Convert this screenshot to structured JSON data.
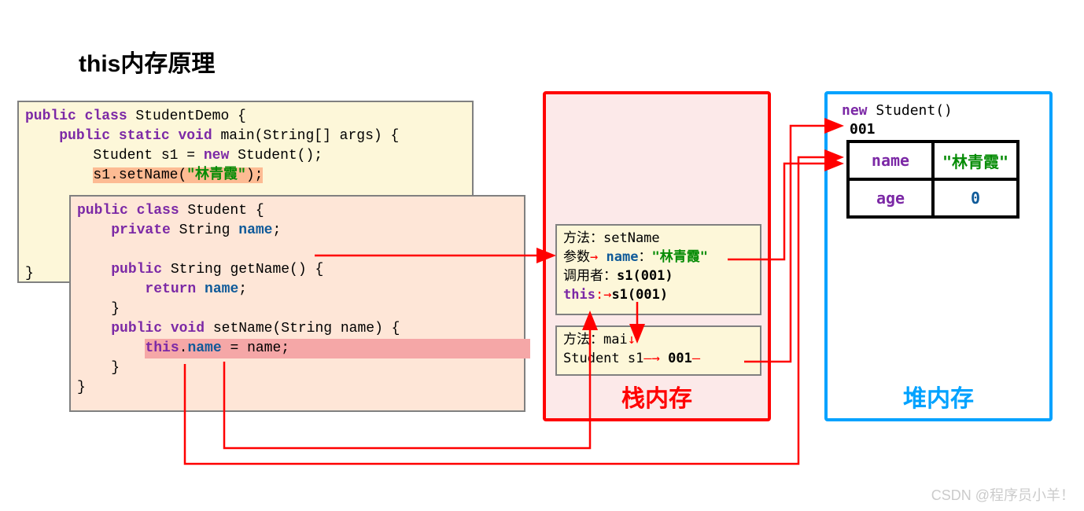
{
  "title": "this内存原理",
  "code1": {
    "bg": "#fdf7d9",
    "lines": [
      {
        "segments": [
          [
            "kw-purple",
            "public class"
          ],
          [
            "plain",
            " StudentDemo {"
          ]
        ]
      },
      {
        "indent": "    ",
        "segments": [
          [
            "kw-purple",
            "public static void"
          ],
          [
            "plain",
            " main(String[] args) {"
          ]
        ]
      },
      {
        "indent": "        ",
        "segments": [
          [
            "plain",
            "Student s1 = "
          ],
          [
            "kw-purple",
            "new"
          ],
          [
            "plain",
            " Student();"
          ]
        ]
      },
      {
        "indent": "        ",
        "highlight": "hl-orange",
        "segments": [
          [
            "plain",
            "s1.setName("
          ],
          [
            "str-green",
            "\"林青霞\""
          ],
          [
            "plain",
            ");"
          ]
        ]
      },
      {
        "indent": "",
        "segments": [
          [
            "plain",
            ""
          ]
        ]
      },
      {
        "indent": "",
        "segments": [
          [
            "plain",
            ""
          ]
        ]
      },
      {
        "indent": "",
        "segments": [
          [
            "plain",
            ""
          ]
        ]
      },
      {
        "indent": "",
        "segments": [
          [
            "plain",
            ""
          ]
        ]
      },
      {
        "indent": "",
        "segments": [
          [
            "plain",
            "}"
          ]
        ]
      }
    ]
  },
  "code2": {
    "bg": "#fee6d7",
    "lines": [
      {
        "segments": [
          [
            "kw-purple",
            "public class"
          ],
          [
            "plain",
            " Student {"
          ]
        ]
      },
      {
        "indent": "    ",
        "segments": [
          [
            "kw-purple",
            "private"
          ],
          [
            "plain",
            " String "
          ],
          [
            "kw-blue",
            "name"
          ],
          [
            "plain",
            ";"
          ]
        ]
      },
      {
        "indent": "",
        "segments": [
          [
            "plain",
            ""
          ]
        ]
      },
      {
        "indent": "    ",
        "segments": [
          [
            "kw-purple",
            "public"
          ],
          [
            "plain",
            " String getName() {"
          ]
        ]
      },
      {
        "indent": "        ",
        "segments": [
          [
            "kw-purple",
            "return"
          ],
          [
            "plain",
            " "
          ],
          [
            "kw-blue",
            "name"
          ],
          [
            "plain",
            ";"
          ]
        ]
      },
      {
        "indent": "    ",
        "segments": [
          [
            "plain",
            "}"
          ]
        ]
      },
      {
        "indent": "    ",
        "segments": [
          [
            "kw-purple",
            "public void"
          ],
          [
            "plain",
            " setName(String name) {"
          ]
        ]
      },
      {
        "indent": "        ",
        "highlight": "hl-pink",
        "segments": [
          [
            "kw-purple",
            "this"
          ],
          [
            "plain",
            "."
          ],
          [
            "kw-blue",
            "name"
          ],
          [
            "plain",
            " = name;"
          ]
        ]
      },
      {
        "indent": "    ",
        "segments": [
          [
            "plain",
            "}"
          ]
        ]
      },
      {
        "indent": "",
        "segments": [
          [
            "plain",
            "}"
          ]
        ]
      }
    ]
  },
  "stack": {
    "label": "栈内存",
    "border_color": "#ff0000",
    "bg": "#fce9e9",
    "frame1": {
      "lines": [
        {
          "raw": "<span class='plain'>方法：setName</span>"
        },
        {
          "raw": "<span class='plain'>参数<span style='color:#ff0000'>→</span> </span><span class='kw-blue'>name</span><span class='plain'>：</span><span class='str-green'>\"林青霞\"</span>"
        },
        {
          "raw": "<span class='plain'>调用者：</span><span class='kw-bold'>s1(001)</span>"
        },
        {
          "raw": "<span class='kw-purple'>this</span><span style='color:#ff0000'>:→</span><span class='kw-bold'>s1(001)</span>"
        }
      ]
    },
    "frame2": {
      "lines": [
        {
          "raw": "<span class='plain'>方法：mai</span><span style='color:#ff0000'>↓</span>"
        },
        {
          "raw": "<span class='plain'> Student s1</span><span style='color:#ff0000'>—→</span> <span class='kw-bold'>001</span><span style='color:#ff0000'>—</span>"
        }
      ]
    }
  },
  "heap": {
    "label": "堆内存",
    "border_color": "#00a2ff",
    "new_text": {
      "kw": "new",
      "rest": " Student()"
    },
    "addr": "001",
    "table": [
      [
        {
          "cls": "td-purple",
          "text": "name"
        },
        {
          "cls": "td-green",
          "text": "\"林青霞\""
        }
      ],
      [
        {
          "cls": "td-purple",
          "text": "age"
        },
        {
          "cls": "td-blue",
          "text": "0"
        }
      ]
    ]
  },
  "arrows": {
    "color": "#ff0000",
    "paths": [
      "M 400 325 L 702 325",
      "M 946 460 L 1005 460 L 1005 160 L 1068 160",
      "M 925 330 L 997 330 L 997 208 L 1068 208",
      "M 235 463 L 235 590 L 1015 590 L 1015 200 L 1068 200",
      "M 285 460 L 285 570 L 750 570 L 750 400",
      "M 810 384 L 810 432"
    ]
  },
  "watermark": "CSDN @程序员小羊！"
}
